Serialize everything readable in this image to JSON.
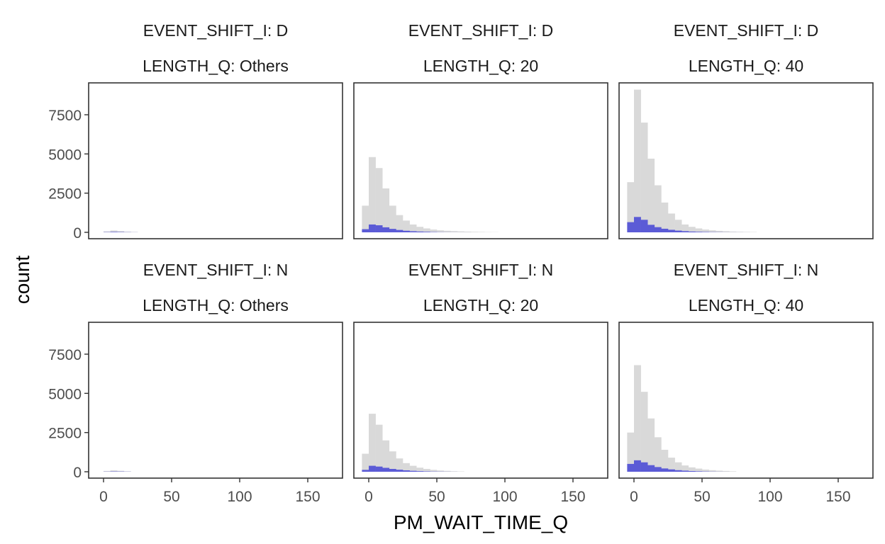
{
  "chart_data": {
    "type": "bar",
    "layout": "faceted histogram, 2 rows x 3 columns, shared axes",
    "xlabel": "PM_WAIT_TIME_Q",
    "ylabel": "count",
    "xlim": [
      -10,
      175
    ],
    "ylim": [
      -400,
      9400
    ],
    "xticks": [
      0,
      50,
      100,
      150
    ],
    "yticks": [
      0,
      2500,
      5000,
      7500
    ],
    "bin_width": 5,
    "grid": false,
    "colors": {
      "all": "#d9d9d9",
      "highlight": "#5b5bd6",
      "frame": "#333333",
      "tick_text": "#4d4d4d"
    },
    "panels": [
      {
        "strip": [
          "EVENT_SHIFT_I: D",
          "LENGTH_Q: Others"
        ],
        "bins_start": -5,
        "all": [
          0,
          60,
          120,
          80,
          40,
          20
        ],
        "highlight": [
          0,
          15,
          30,
          20,
          10,
          5
        ]
      },
      {
        "strip": [
          "EVENT_SHIFT_I: D",
          "LENGTH_Q: 20"
        ],
        "bins_start": -5,
        "all": [
          1700,
          4800,
          4100,
          2800,
          1700,
          1100,
          750,
          500,
          350,
          250,
          180,
          130,
          100,
          80,
          60,
          45,
          35,
          25,
          15,
          10
        ],
        "highlight": [
          200,
          500,
          450,
          320,
          220,
          150,
          100,
          70,
          50,
          35,
          20,
          10,
          5,
          3,
          2,
          1,
          0,
          0,
          0,
          0
        ]
      },
      {
        "strip": [
          "EVENT_SHIFT_I: D",
          "LENGTH_Q: 40"
        ],
        "bins_start": -5,
        "all": [
          3200,
          9100,
          7000,
          4700,
          3000,
          1900,
          1200,
          800,
          500,
          350,
          250,
          180,
          130,
          95,
          70,
          50,
          35,
          25,
          20
        ],
        "highlight": [
          650,
          980,
          800,
          480,
          330,
          230,
          160,
          110,
          75,
          50,
          35,
          25,
          15,
          10,
          5,
          3,
          2,
          1,
          0
        ]
      },
      {
        "strip": [
          "EVENT_SHIFT_I: N",
          "LENGTH_Q: Others"
        ],
        "bins_start": -5,
        "all": [
          0,
          50,
          90,
          60,
          30
        ],
        "highlight": [
          0,
          10,
          20,
          15,
          8
        ]
      },
      {
        "strip": [
          "EVENT_SHIFT_I: N",
          "LENGTH_Q: 20"
        ],
        "bins_start": -5,
        "all": [
          1150,
          3700,
          3000,
          2000,
          1300,
          850,
          550,
          380,
          260,
          180,
          120,
          80,
          55,
          35,
          20
        ],
        "highlight": [
          120,
          380,
          330,
          250,
          180,
          130,
          90,
          60,
          40,
          25,
          15,
          10,
          5,
          2,
          0
        ]
      },
      {
        "strip": [
          "EVENT_SHIFT_I: N",
          "LENGTH_Q: 40"
        ],
        "bins_start": -5,
        "all": [
          2500,
          6800,
          5100,
          3400,
          2200,
          1400,
          900,
          600,
          400,
          280,
          200,
          140,
          100,
          70,
          50,
          30
        ],
        "highlight": [
          500,
          730,
          600,
          420,
          300,
          210,
          150,
          100,
          70,
          45,
          30,
          18,
          10,
          5,
          2,
          0
        ]
      }
    ]
  }
}
